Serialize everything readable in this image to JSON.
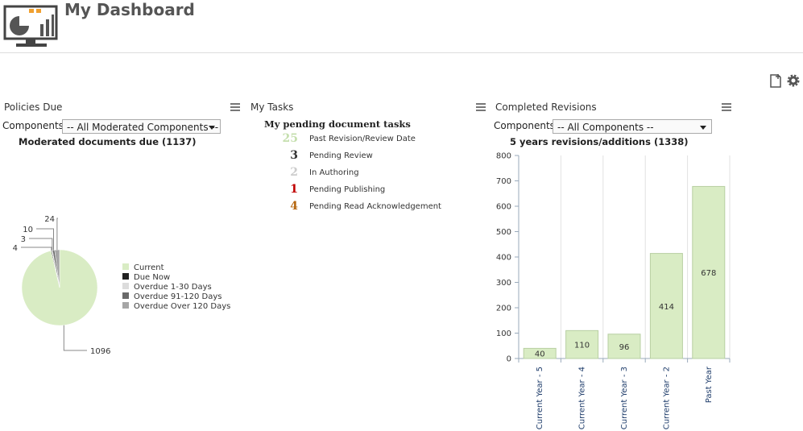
{
  "header": {
    "title": "My Dashboard"
  },
  "policies": {
    "title": "Policies Due",
    "components_label": "Components:",
    "select": "-- All Moderated Components --",
    "chart_data": {
      "type": "pie",
      "title": "Moderated documents due (1137)",
      "categories": [
        "Current",
        "Due Now",
        "Overdue 1-30 Days",
        "Overdue 91-120 Days",
        "Overdue Over 120 Days"
      ],
      "values": [
        1096,
        4,
        3,
        10,
        24
      ],
      "colors": [
        "#d9ecc4",
        "#222222",
        "#dcdcdc",
        "#6a6a6a",
        "#a6a6a6"
      ]
    }
  },
  "tasks": {
    "title": "My Tasks",
    "heading": "My pending document tasks",
    "items": [
      {
        "count": 25,
        "label": "Past Revision/Review Date",
        "color": "#c5dfae"
      },
      {
        "count": 3,
        "label": "Pending Review",
        "color": "#333333"
      },
      {
        "count": 2,
        "label": "In Authoring",
        "color": "#cccccc"
      },
      {
        "count": 1,
        "label": "Pending Publishing",
        "color": "#c00000"
      },
      {
        "count": 4,
        "label": "Pending Read Acknowledgement",
        "color": "#b5650d"
      }
    ]
  },
  "revisions": {
    "title": "Completed Revisions",
    "components_label": "Components:",
    "select": "-- All Components --",
    "chart_data": {
      "type": "bar",
      "title": "5 years revisions/additions (1338)",
      "categories": [
        "Current Year - 5",
        "Current Year - 4",
        "Current Year - 3",
        "Current Year - 2",
        "Past Year"
      ],
      "values": [
        40,
        110,
        96,
        414,
        678
      ],
      "color": "#d9ecc4",
      "ylim": [
        0,
        800
      ],
      "yticks": [
        0,
        100,
        200,
        300,
        400,
        500,
        600,
        700,
        800
      ]
    }
  }
}
